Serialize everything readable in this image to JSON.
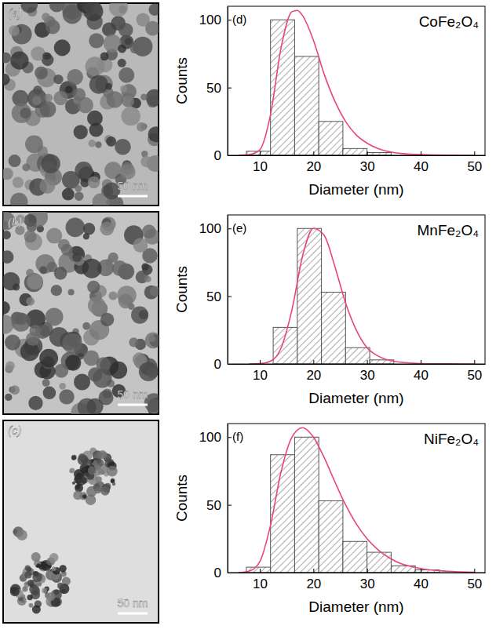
{
  "images": [
    {
      "label": "(a)",
      "scale_bar": "50 nm"
    },
    {
      "label": "(b)",
      "scale_bar": "50 nm"
    },
    {
      "label": "(c)",
      "scale_bar": "50 nm"
    }
  ],
  "chart_data": [
    {
      "type": "histogram",
      "label": "(d)",
      "title": "CoFe₂O₄",
      "x_label": "Diameter (nm)",
      "y_label": "Counts",
      "bins": [
        7.5,
        12,
        16.5,
        21,
        25.5,
        30,
        34.5
      ],
      "values": [
        3,
        100,
        73,
        25,
        5,
        2
      ],
      "color": "#555555",
      "fit": {
        "x": [
          6,
          8,
          10,
          12,
          14,
          16,
          17,
          18,
          20,
          22,
          24,
          26,
          28,
          30,
          32,
          35,
          40,
          45,
          50
        ],
        "values": [
          0,
          0.5,
          4,
          30,
          80,
          106,
          107,
          103,
          85,
          60,
          40,
          25,
          15,
          9,
          5,
          2,
          0.5,
          0.1,
          0
        ],
        "color": "#e8457a"
      },
      "xlim": [
        4,
        52
      ],
      "ylim": [
        0,
        110
      ],
      "xticks": [
        10,
        20,
        30,
        40,
        50
      ],
      "yticks": [
        0,
        50,
        100
      ]
    },
    {
      "type": "histogram",
      "label": "(e)",
      "title": "MnFe₂O₄",
      "x_label": "Diameter (nm)",
      "y_label": "Counts",
      "bins": [
        12.5,
        17,
        21.5,
        26,
        30.5,
        35
      ],
      "values": [
        27,
        100,
        53,
        12,
        3
      ],
      "color": "#555555",
      "fit": {
        "x": [
          8,
          10,
          12,
          14,
          16,
          18,
          20,
          22,
          24,
          26,
          28,
          30,
          32,
          35,
          40,
          45,
          50
        ],
        "values": [
          0,
          0.2,
          2,
          12,
          40,
          80,
          100,
          95,
          72,
          45,
          25,
          12,
          6,
          2,
          0.3,
          0.1,
          0
        ],
        "color": "#e8457a"
      },
      "xlim": [
        4,
        52
      ],
      "ylim": [
        0,
        110
      ],
      "xticks": [
        10,
        20,
        30,
        40,
        50
      ],
      "yticks": [
        0,
        50,
        100
      ]
    },
    {
      "type": "histogram",
      "label": "(f)",
      "title": "NiFe₂O₄",
      "x_label": "Diameter (nm)",
      "y_label": "Counts",
      "bins": [
        7.5,
        12,
        16.5,
        21,
        25.5,
        30,
        34.5,
        39,
        43.5
      ],
      "values": [
        4,
        87,
        100,
        53,
        23,
        15,
        5,
        2
      ],
      "color": "#555555",
      "fit": {
        "x": [
          6,
          8,
          10,
          12,
          14,
          16,
          18,
          20,
          22,
          24,
          26,
          28,
          30,
          32,
          35,
          40,
          45,
          50
        ],
        "values": [
          0,
          1,
          8,
          35,
          75,
          100,
          107,
          100,
          85,
          67,
          50,
          36,
          25,
          17,
          9,
          3,
          1,
          0.3
        ],
        "color": "#e8457a"
      },
      "xlim": [
        4,
        52
      ],
      "ylim": [
        0,
        110
      ],
      "xticks": [
        10,
        20,
        30,
        40,
        50
      ],
      "yticks": [
        0,
        50,
        100
      ]
    }
  ]
}
